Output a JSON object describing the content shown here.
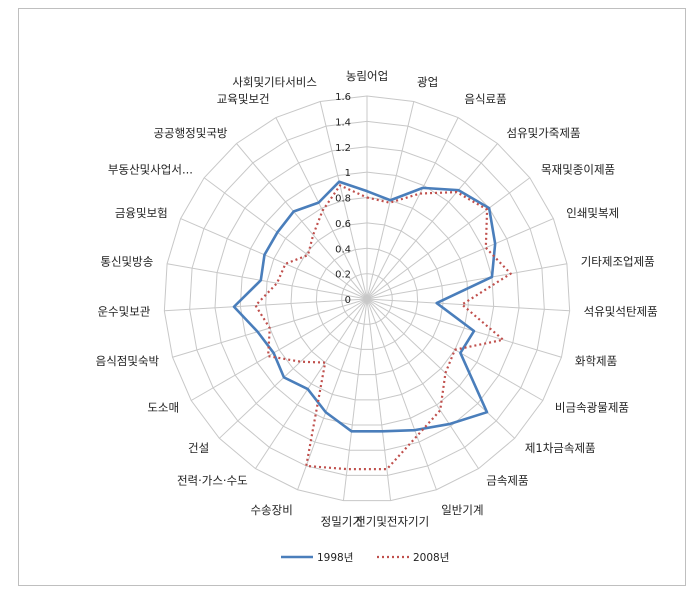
{
  "chart_data": {
    "type": "radar",
    "title": "",
    "categories": [
      "농림어업",
      "광업",
      "음식료품",
      "섬유및가죽제품",
      "목재및종이제품",
      "인쇄및복제",
      "기타제조업제품",
      "석유및석탄제품",
      "화학제품",
      "비금속광물제품",
      "제1차금속제품",
      "금속제품",
      "일반기계",
      "전기및전자기기",
      "정밀기기",
      "수송장비",
      "전력·가스·수도",
      "건설",
      "도소매",
      "음식점및숙박",
      "운수및보관",
      "통신및방송",
      "금융및보험",
      "부동산및사업서...",
      "공공행정및국방",
      "교육및보건",
      "사회및기타서비스"
    ],
    "r_ticks": [
      "0",
      "0.2",
      "0.4",
      "0.6",
      "0.8",
      "1",
      "1.2",
      "1.4",
      "1.6"
    ],
    "rlim": [
      0,
      1.6
    ],
    "grid": true,
    "legend_position": "bottom",
    "series": [
      {
        "name": "1998년",
        "color": "#4a7ebb",
        "style": "solid",
        "values": [
          0.85,
          0.8,
          0.98,
          1.12,
          1.2,
          1.1,
          1.0,
          0.55,
          0.88,
          0.85,
          1.3,
          1.18,
          1.1,
          1.05,
          1.05,
          0.95,
          0.85,
          0.9,
          0.85,
          0.9,
          1.05,
          0.85,
          0.88,
          0.88,
          0.9,
          0.85,
          0.95
        ]
      },
      {
        "name": "2008년",
        "color": "#c0504d",
        "style": "dotted",
        "values": [
          0.8,
          0.78,
          0.93,
          1.1,
          1.18,
          1.02,
          1.15,
          0.75,
          1.12,
          0.8,
          0.85,
          1.05,
          1.15,
          1.35,
          1.35,
          1.4,
          0.6,
          0.72,
          0.9,
          0.8,
          0.88,
          0.72,
          0.7,
          0.58,
          0.66,
          0.78,
          0.92
        ]
      }
    ]
  }
}
